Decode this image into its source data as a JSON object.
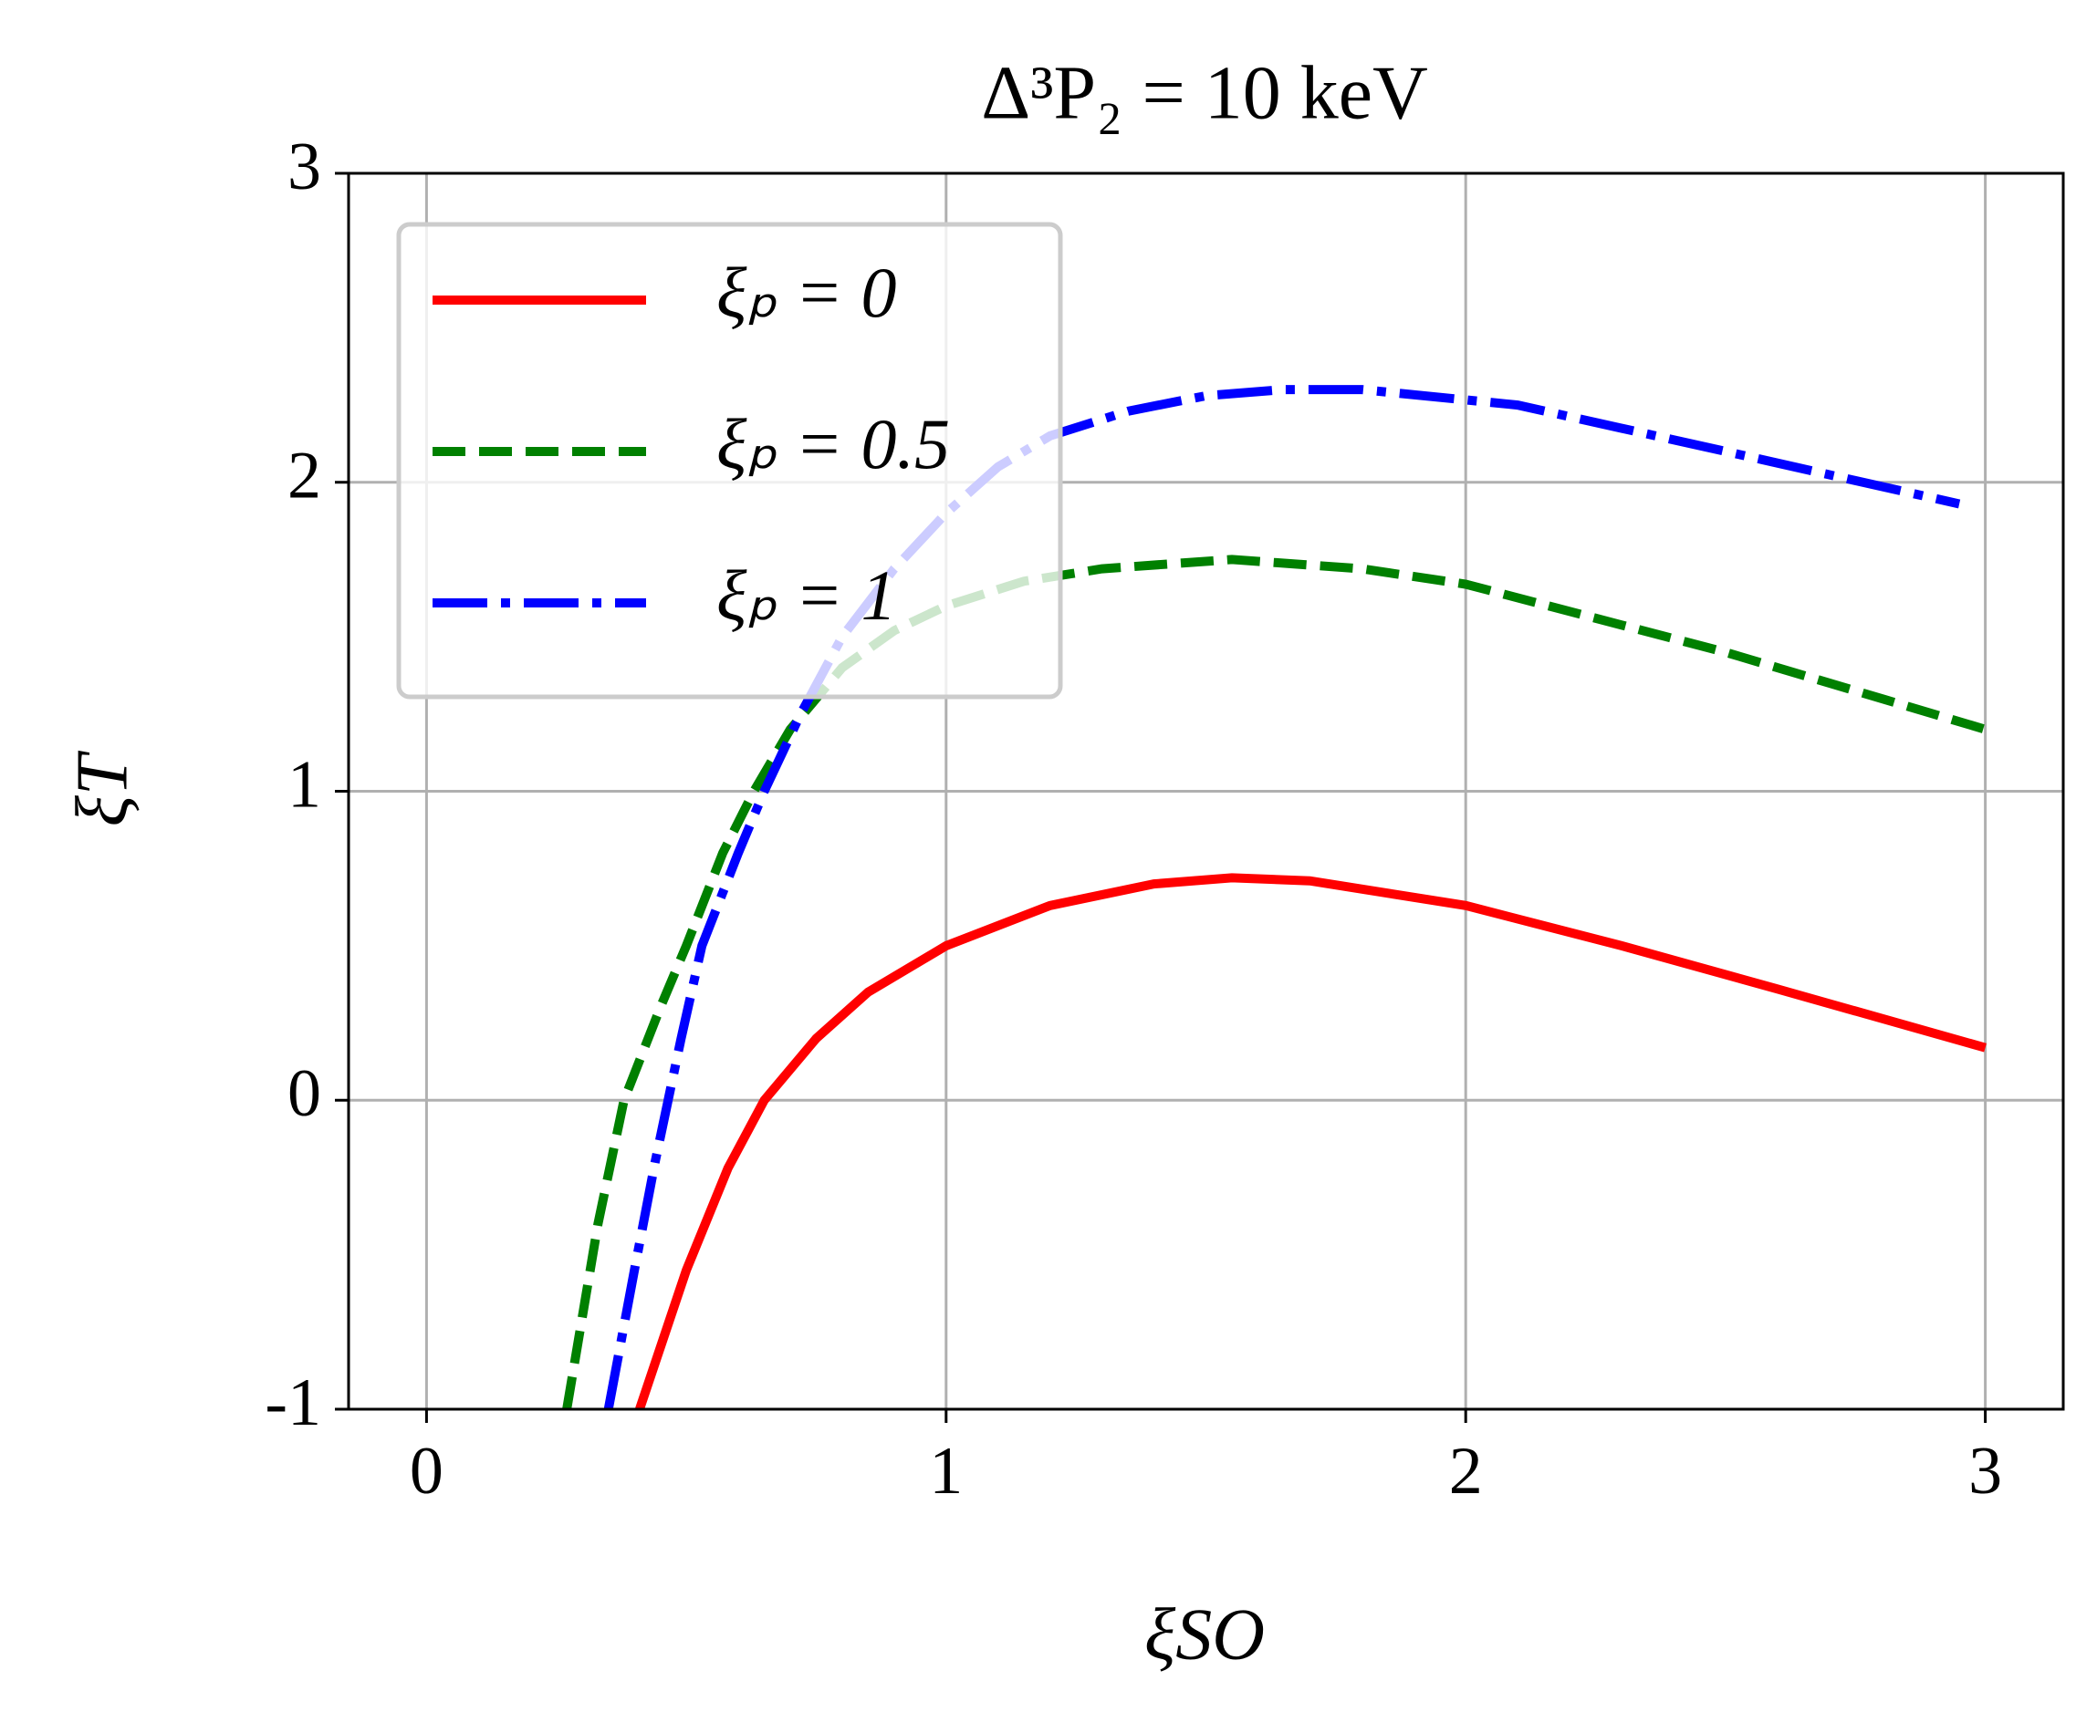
{
  "chart_data": {
    "type": "line",
    "title": "Δ³P₂ = 10 keV",
    "xlabel": "ξSO",
    "ylabel": "ξT",
    "xlim": [
      -0.15,
      3.15
    ],
    "ylim": [
      -1,
      3
    ],
    "xticks": [
      0,
      1,
      2,
      3
    ],
    "yticks": [
      -1,
      0,
      1,
      2,
      3
    ],
    "grid": true,
    "legend": "upper left",
    "series": [
      {
        "name": "ξₚ = 0",
        "color": "#ff0000",
        "linestyle": "solid",
        "x": [
          0.41,
          0.5,
          0.58,
          0.65,
          0.75,
          0.85,
          1.0,
          1.2,
          1.4,
          1.55,
          1.7,
          2.0,
          2.3,
          2.6,
          3.0
        ],
        "values": [
          -1,
          -0.55,
          -0.22,
          0,
          0.2,
          0.35,
          0.5,
          0.63,
          0.7,
          0.72,
          0.71,
          0.63,
          0.5,
          0.36,
          0.17
        ]
      },
      {
        "name": "ξₚ = 0.5",
        "color": "#008000",
        "linestyle": "dashed",
        "x": [
          0.27,
          0.33,
          0.38,
          0.45,
          0.5,
          0.57,
          0.63,
          0.7,
          0.8,
          0.9,
          1.0,
          1.15,
          1.3,
          1.55,
          1.8,
          2.0,
          2.5,
          3.0
        ],
        "values": [
          -1,
          -0.4,
          0,
          0.3,
          0.5,
          0.8,
          1.0,
          1.2,
          1.4,
          1.52,
          1.6,
          1.68,
          1.72,
          1.75,
          1.72,
          1.67,
          1.45,
          1.2
        ]
      },
      {
        "name": "ξₚ = 1",
        "color": "#0000ff",
        "linestyle": "dashdot",
        "x": [
          0.35,
          0.4,
          0.44,
          0.49,
          0.53,
          0.6,
          0.65,
          0.72,
          0.8,
          0.9,
          1.0,
          1.1,
          1.2,
          1.35,
          1.5,
          1.65,
          1.8,
          2.1,
          2.5,
          2.95
        ],
        "values": [
          -1,
          -0.55,
          -0.2,
          0.2,
          0.5,
          0.8,
          1.0,
          1.25,
          1.5,
          1.72,
          1.9,
          2.05,
          2.15,
          2.23,
          2.28,
          2.3,
          2.3,
          2.25,
          2.1,
          1.93
        ]
      }
    ]
  }
}
